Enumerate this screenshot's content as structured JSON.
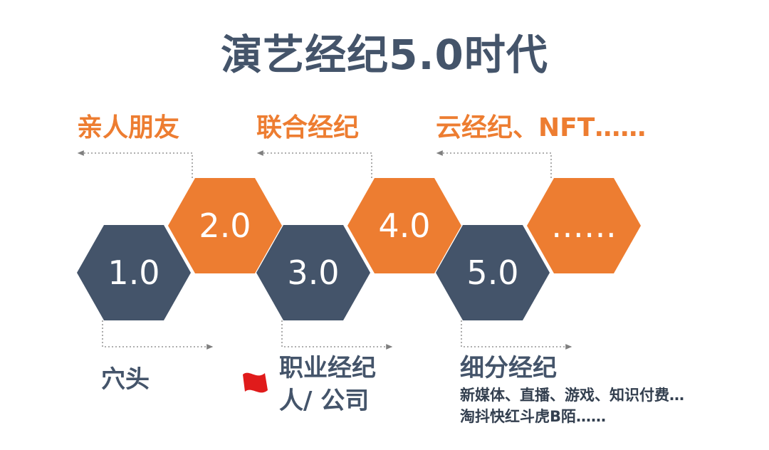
{
  "title": "演艺经纪5.0时代",
  "hexagons": [
    {
      "label": "1.0",
      "color": "#44546a"
    },
    {
      "label": "2.0",
      "color": "#ed7d31"
    },
    {
      "label": "3.0",
      "color": "#44546a"
    },
    {
      "label": "4.0",
      "color": "#ed7d31"
    },
    {
      "label": "5.0",
      "color": "#44546a"
    },
    {
      "label": "……",
      "color": "#ed7d31"
    }
  ],
  "top_labels": {
    "stage2": "亲人朋友",
    "stage4": "联合经纪",
    "stage6": "云经纪、NFT……"
  },
  "bottom_labels": {
    "stage1": "穴头",
    "stage3_line1": "职业经纪",
    "stage3_line2": "人/ 公司",
    "stage5_title": "细分经纪",
    "stage5_line1": "新媒体、直播、游戏、知识付费…",
    "stage5_line2": "淘抖快红斗虎B陌……"
  },
  "flag_icon": "red-flag-icon",
  "colors": {
    "orange": "#ed7d31",
    "slate": "#44546a",
    "flag": "#e01b1b"
  }
}
